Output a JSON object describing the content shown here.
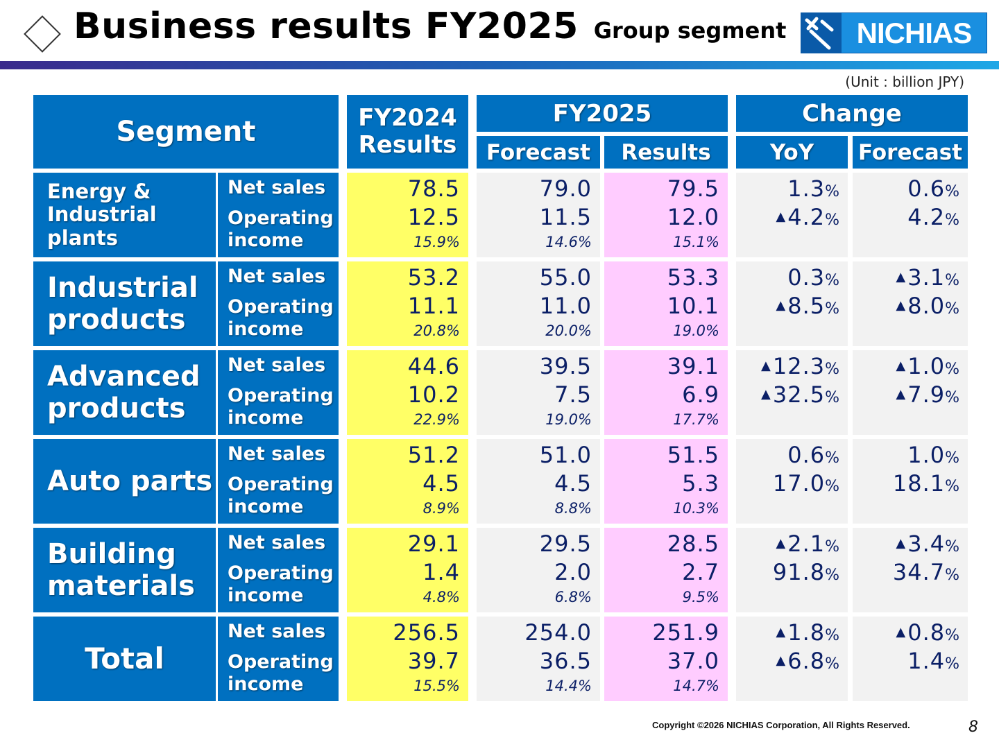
{
  "header": {
    "title": "Business results FY2025",
    "subtitle": "Group segment",
    "logo_text": "NICHIAS"
  },
  "unit": "(Unit : billion JPY)",
  "table_headers": {
    "segment": "Segment",
    "fy2024_line1": "FY2024",
    "fy2024_line2": "Results",
    "fy2025": "FY2025",
    "forecast": "Forecast",
    "results": "Results",
    "change": "Change",
    "yoy": "YoY",
    "change_forecast": "Forecast"
  },
  "metric_labels": {
    "net_sales": "Net sales",
    "operating_income": "Operating income"
  },
  "rows": [
    {
      "segment": "Energy & Industrial plants",
      "fy2024": [
        "78.5",
        "12.5",
        "15.9%"
      ],
      "forecast": [
        "79.0",
        "11.5",
        "14.6%"
      ],
      "results": [
        "79.5",
        "12.0",
        "15.1%"
      ],
      "yoy": [
        {
          "tri": "",
          "num": "1.3"
        },
        {
          "tri": "▲",
          "num": "4.2"
        }
      ],
      "vs_forecast": [
        {
          "tri": "",
          "num": "0.6"
        },
        {
          "tri": "",
          "num": "4.2"
        }
      ]
    },
    {
      "segment": "Industrial products",
      "fy2024": [
        "53.2",
        "11.1",
        "20.8%"
      ],
      "forecast": [
        "55.0",
        "11.0",
        "20.0%"
      ],
      "results": [
        "53.3",
        "10.1",
        "19.0%"
      ],
      "yoy": [
        {
          "tri": "",
          "num": "0.3"
        },
        {
          "tri": "▲",
          "num": "8.5"
        }
      ],
      "vs_forecast": [
        {
          "tri": "▲",
          "num": "3.1"
        },
        {
          "tri": "▲",
          "num": "8.0"
        }
      ]
    },
    {
      "segment": "Advanced products",
      "fy2024": [
        "44.6",
        "10.2",
        "22.9%"
      ],
      "forecast": [
        "39.5",
        "7.5",
        "19.0%"
      ],
      "results": [
        "39.1",
        "6.9",
        "17.7%"
      ],
      "yoy": [
        {
          "tri": "▲",
          "num": "12.3"
        },
        {
          "tri": "▲",
          "num": "32.5"
        }
      ],
      "vs_forecast": [
        {
          "tri": "▲",
          "num": "1.0"
        },
        {
          "tri": "▲",
          "num": "7.9"
        }
      ]
    },
    {
      "segment": "Auto parts",
      "fy2024": [
        "51.2",
        "4.5",
        "8.9%"
      ],
      "forecast": [
        "51.0",
        "4.5",
        "8.8%"
      ],
      "results": [
        "51.5",
        "5.3",
        "10.3%"
      ],
      "yoy": [
        {
          "tri": "",
          "num": "0.6"
        },
        {
          "tri": "",
          "num": "17.0"
        }
      ],
      "vs_forecast": [
        {
          "tri": "",
          "num": "1.0"
        },
        {
          "tri": "",
          "num": "18.1"
        }
      ]
    },
    {
      "segment": "Building materials",
      "fy2024": [
        "29.1",
        "1.4",
        "4.8%"
      ],
      "forecast": [
        "29.5",
        "2.0",
        "6.8%"
      ],
      "results": [
        "28.5",
        "2.7",
        "9.5%"
      ],
      "yoy": [
        {
          "tri": "▲",
          "num": "2.1"
        },
        {
          "tri": "",
          "num": "91.8"
        }
      ],
      "vs_forecast": [
        {
          "tri": "▲",
          "num": "3.4"
        },
        {
          "tri": "",
          "num": "34.7"
        }
      ]
    },
    {
      "segment": "Total",
      "fy2024": [
        "256.5",
        "39.7",
        "15.5%"
      ],
      "forecast": [
        "254.0",
        "36.5",
        "14.4%"
      ],
      "results": [
        "251.9",
        "37.0",
        "14.7%"
      ],
      "yoy": [
        {
          "tri": "▲",
          "num": "1.8"
        },
        {
          "tri": "▲",
          "num": "6.8"
        }
      ],
      "vs_forecast": [
        {
          "tri": "▲",
          "num": "0.8"
        },
        {
          "tri": "",
          "num": "1.4"
        }
      ]
    }
  ],
  "percent_sign": "%",
  "footer": {
    "copyright": "Copyright ©2026 NICHIAS Corporation, All Rights Reserved.",
    "page": "8"
  }
}
